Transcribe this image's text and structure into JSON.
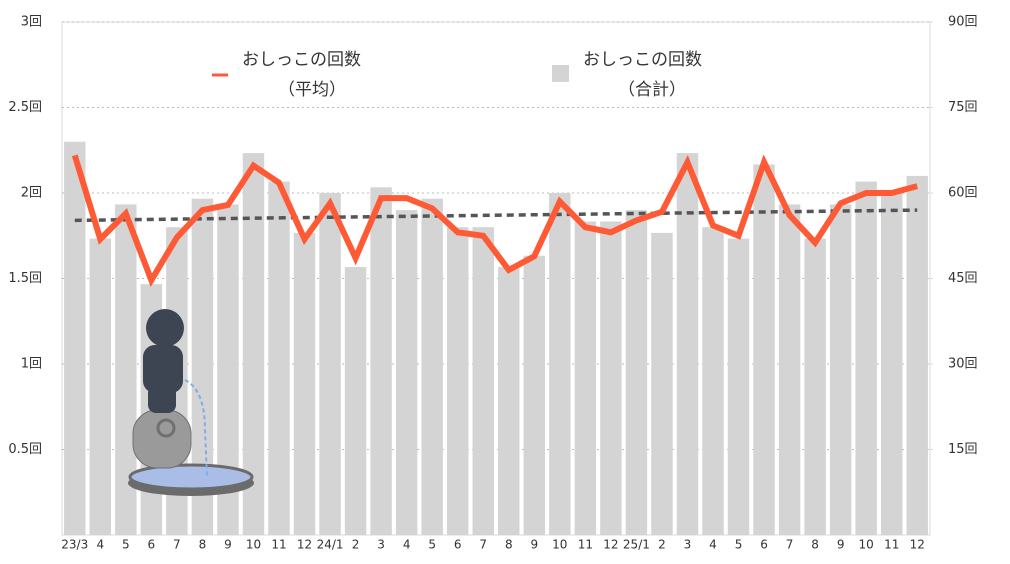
{
  "chart_data": {
    "type": "bar_line",
    "categories": [
      "23/3",
      "4",
      "5",
      "6",
      "7",
      "8",
      "9",
      "10",
      "11",
      "12",
      "24/1",
      "2",
      "3",
      "4",
      "5",
      "6",
      "7",
      "8",
      "9",
      "10",
      "11",
      "12",
      "25/1",
      "2",
      "3",
      "4",
      "5",
      "6",
      "7",
      "8",
      "9",
      "10",
      "11",
      "12"
    ],
    "series": [
      {
        "name": "おしっこの回数",
        "subname": "（平均）",
        "type": "line",
        "color": "#ff5a36",
        "values": [
          2.22,
          1.73,
          1.88,
          1.49,
          1.74,
          1.9,
          1.93,
          2.16,
          2.06,
          1.73,
          1.94,
          1.62,
          1.97,
          1.97,
          1.91,
          1.77,
          1.75,
          1.55,
          1.63,
          1.95,
          1.8,
          1.77,
          1.84,
          1.89,
          2.18,
          1.81,
          1.75,
          2.18,
          1.87,
          1.71,
          1.94,
          2.0,
          2.0,
          2.04
        ]
      },
      {
        "name": "おしっこの回数",
        "subname": "（合計）",
        "type": "bar",
        "axis": "y2",
        "color": "#d4d4d4",
        "values": [
          69,
          52,
          58,
          44,
          54,
          59,
          58,
          67,
          62,
          53,
          60,
          47,
          61,
          57,
          59,
          54,
          54,
          47,
          49,
          60,
          55,
          55,
          57,
          53,
          67,
          54,
          52,
          65,
          58,
          52,
          58,
          62,
          60,
          63
        ]
      }
    ],
    "trendline": {
      "values": [
        1.84,
        1.9
      ],
      "color": "#555555"
    },
    "ylim": [
      0,
      3
    ],
    "yticks": [
      {
        "value": 0.5,
        "label": "0.5回"
      },
      {
        "value": 1,
        "label": "1回"
      },
      {
        "value": 1.5,
        "label": "1.5回"
      },
      {
        "value": 2,
        "label": "2回"
      },
      {
        "value": 2.5,
        "label": "2.5回"
      },
      {
        "value": 3,
        "label": "3回"
      }
    ],
    "y2lim": [
      0,
      90
    ],
    "y2ticks": [
      {
        "value": 15,
        "label": "15回"
      },
      {
        "value": 30,
        "label": "30回"
      },
      {
        "value": 45,
        "label": "45回"
      },
      {
        "value": 60,
        "label": "60回"
      },
      {
        "value": 75,
        "label": "75回"
      },
      {
        "value": 90,
        "label": "90回"
      }
    ],
    "grid": true
  }
}
